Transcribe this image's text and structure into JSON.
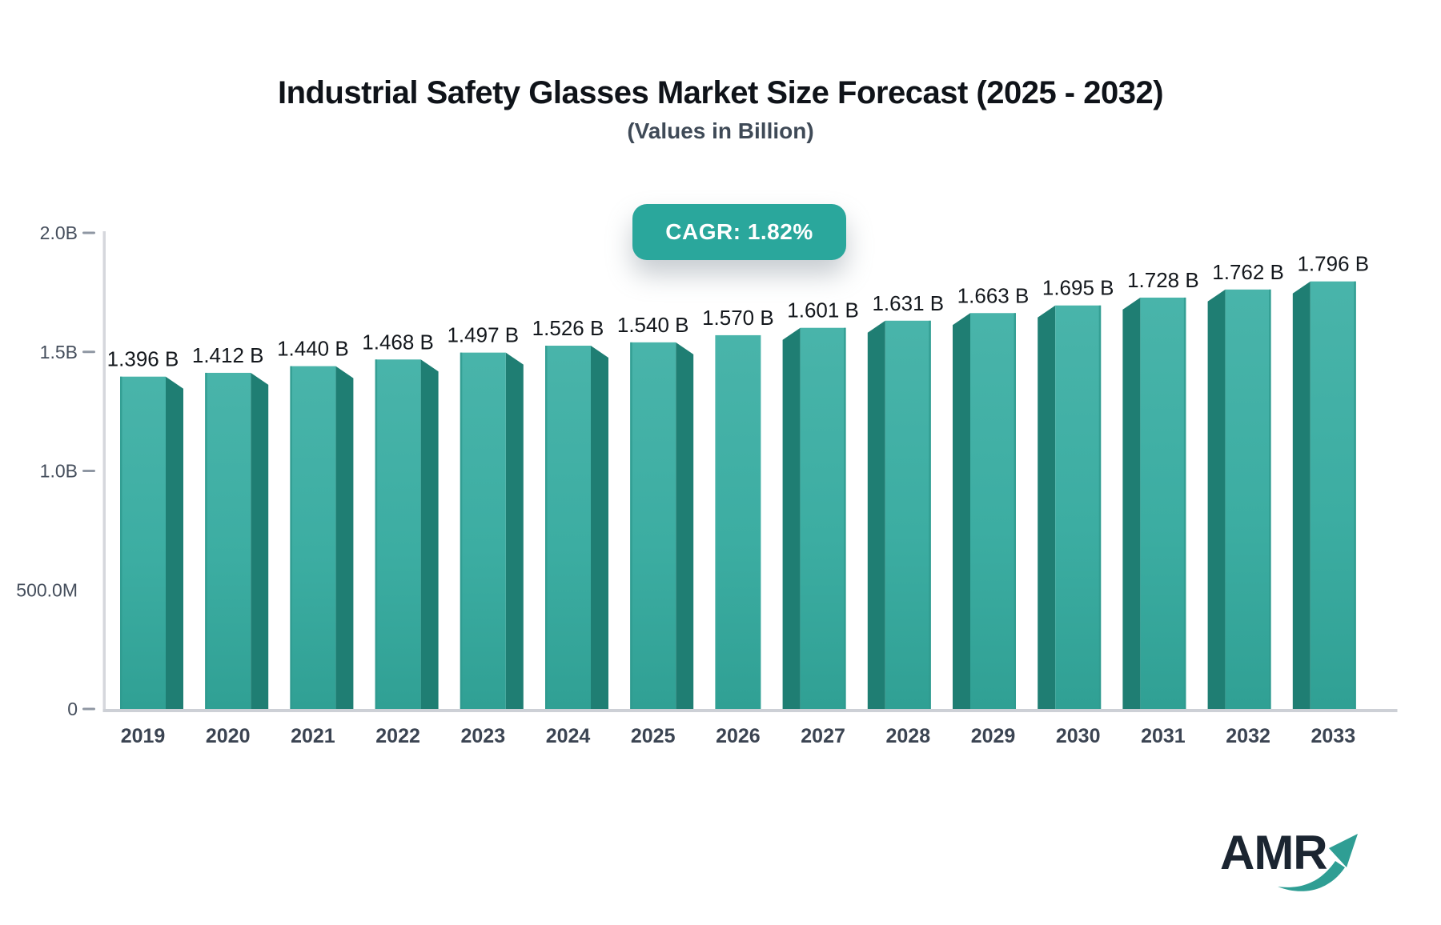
{
  "header": {
    "title": "Industrial Safety Glasses Market Size Forecast (2025 - 2032)",
    "subtitle": "(Values in Billion)"
  },
  "badge": {
    "label": "CAGR: 1.82%",
    "background": "#2aa79c",
    "text_color": "#ffffff"
  },
  "chart_data": {
    "type": "bar",
    "title": "Industrial Safety Glasses Market Size Forecast (2025 - 2032)",
    "subtitle": "(Values in Billion)",
    "annotation": "CAGR: 1.82%",
    "categories": [
      "2019",
      "2020",
      "2021",
      "2022",
      "2023",
      "2024",
      "2025",
      "2026",
      "2027",
      "2028",
      "2029",
      "2030",
      "2031",
      "2032",
      "2033"
    ],
    "values": [
      1.396,
      1.412,
      1.44,
      1.468,
      1.497,
      1.526,
      1.54,
      1.57,
      1.601,
      1.631,
      1.663,
      1.695,
      1.728,
      1.762,
      1.796
    ],
    "value_labels": [
      "1.396 B",
      "1.412 B",
      "1.440 B",
      "1.468 B",
      "1.497 B",
      "1.526 B",
      "1.540 B",
      "1.570 B",
      "1.601 B",
      "1.631 B",
      "1.663 B",
      "1.695 B",
      "1.728 B",
      "1.762 B",
      "1.796 B"
    ],
    "unit": "Billion",
    "xlabel": "",
    "ylabel": "",
    "ylim": [
      0,
      2.0
    ],
    "grid": false,
    "legend": null,
    "style": "3d-perspective-bars",
    "yticks": [
      {
        "label": "2.0B",
        "value": 2.0,
        "dash": true
      },
      {
        "label": "1.5B",
        "value": 1.5,
        "dash": true
      },
      {
        "label": "1.0B",
        "value": 1.0,
        "dash": true
      },
      {
        "label": "500.0M",
        "value": 0.5,
        "dash": false
      },
      {
        "label": "0",
        "value": 0.0,
        "dash": true
      }
    ],
    "colors": {
      "bar_front_top": "#49b4aa",
      "bar_front_mid": "#3cada2",
      "bar_front_bottom": "#30a094",
      "bar_side": "#1f7e73",
      "bar_edge": "#2f9a8e",
      "axis_line": "#d5d7dc",
      "baseline": "#cdd0d6",
      "tick_dash": "#8f97a3",
      "value_label": "#14181d",
      "category_label": "#3b4452",
      "ytick_label": "#454e5c"
    }
  },
  "logo": {
    "text": "AMR",
    "text_color": "#1b2531",
    "arrow_color": "#2f9e94"
  }
}
